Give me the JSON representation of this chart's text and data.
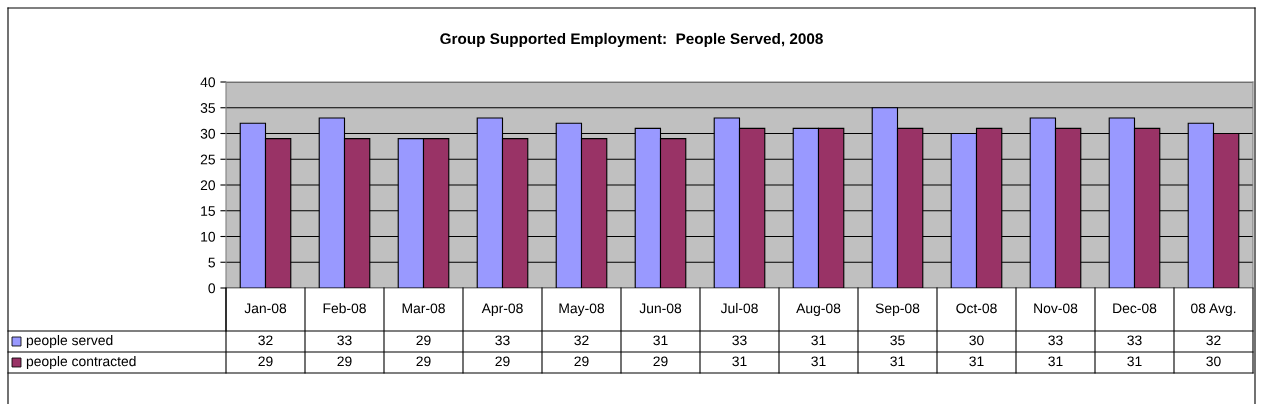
{
  "chart_data": {
    "type": "bar",
    "title": "Group Supported Employment:  People Served, 2008",
    "categories": [
      "Jan-08",
      "Feb-08",
      "Mar-08",
      "Apr-08",
      "May-08",
      "Jun-08",
      "Jul-08",
      "Aug-08",
      "Sep-08",
      "Oct-08",
      "Nov-08",
      "Dec-08",
      "08 Avg."
    ],
    "series": [
      {
        "name": "people served",
        "color": "#9999ff",
        "values": [
          32,
          33,
          29,
          33,
          32,
          31,
          33,
          31,
          35,
          30,
          33,
          33,
          32
        ]
      },
      {
        "name": "people contracted",
        "color": "#993366",
        "values": [
          29,
          29,
          29,
          29,
          29,
          29,
          31,
          31,
          31,
          31,
          31,
          31,
          30
        ]
      }
    ],
    "ylim": [
      0,
      40
    ],
    "yticks": [
      0,
      5,
      10,
      15,
      20,
      25,
      30,
      35,
      40
    ],
    "grid": "y",
    "legend": "bottom left",
    "data_labels": true
  }
}
